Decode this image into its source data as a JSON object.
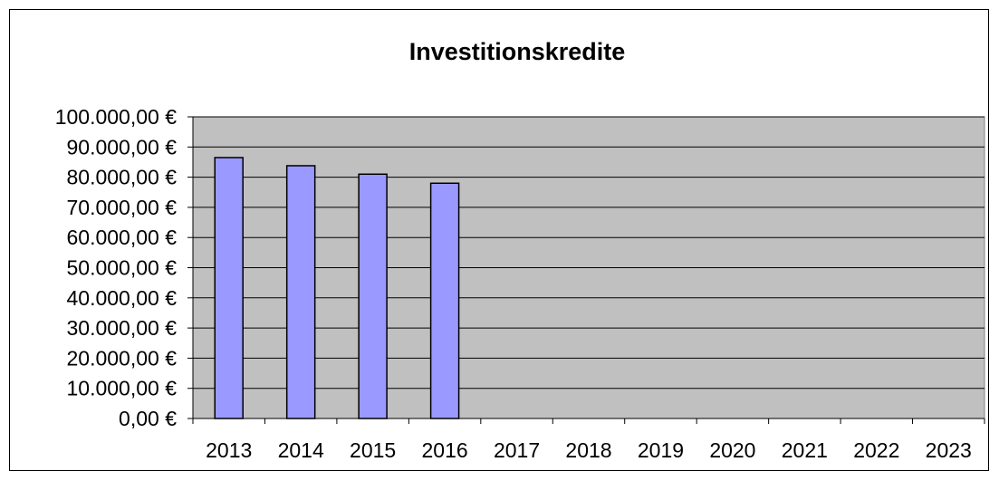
{
  "chart_data": {
    "type": "bar",
    "title": "Investitionskredite",
    "xlabel": "",
    "ylabel": "",
    "categories": [
      "2013",
      "2014",
      "2015",
      "2016",
      "2017",
      "2018",
      "2019",
      "2020",
      "2021",
      "2022",
      "2023"
    ],
    "values": [
      86500,
      83800,
      81000,
      78000,
      null,
      null,
      null,
      null,
      null,
      null,
      null
    ],
    "ylim": [
      0,
      100000
    ],
    "yticks": [
      0,
      10000,
      20000,
      30000,
      40000,
      50000,
      60000,
      70000,
      80000,
      90000,
      100000
    ],
    "ytick_labels": [
      "0,00 €",
      "10.000,00 €",
      "20.000,00 €",
      "30.000,00 €",
      "40.000,00 €",
      "50.000,00 €",
      "60.000,00 €",
      "70.000,00 €",
      "80.000,00 €",
      "90.000,00 €",
      "100.000,00 €"
    ],
    "grid": true,
    "legend": "none",
    "colors": {
      "bar_fill": "#9999ff",
      "bar_stroke": "#000000",
      "plot_background": "#c0c0c0",
      "grid": "#000000"
    }
  }
}
